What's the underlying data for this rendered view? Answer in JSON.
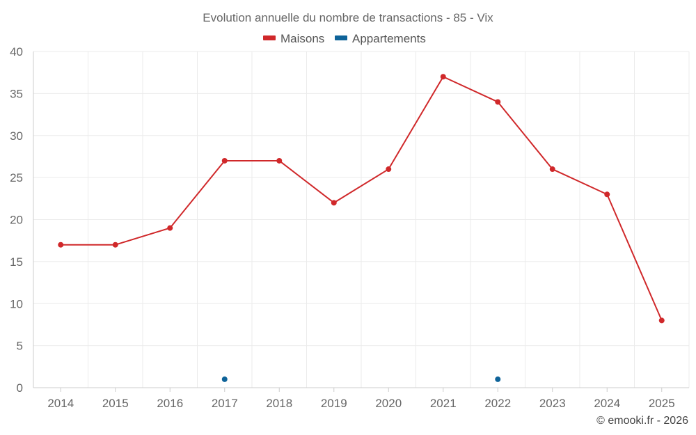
{
  "chart_data": {
    "type": "line",
    "title": "Evolution annuelle du nombre de transactions - 85 - Vix",
    "categories": [
      "2014",
      "2015",
      "2016",
      "2017",
      "2018",
      "2019",
      "2020",
      "2021",
      "2022",
      "2023",
      "2024",
      "2025"
    ],
    "series": [
      {
        "name": "Maisons",
        "color": "#d0282a",
        "values": [
          17,
          17,
          19,
          27,
          27,
          22,
          26,
          37,
          34,
          26,
          23,
          8
        ]
      },
      {
        "name": "Appartements",
        "color": "#0e6399",
        "values": [
          null,
          null,
          null,
          1,
          null,
          null,
          null,
          null,
          1,
          null,
          null,
          null
        ]
      }
    ],
    "ylim": [
      0,
      40
    ],
    "yticks": [
      0,
      5,
      10,
      15,
      20,
      25,
      30,
      35,
      40
    ],
    "grid": true,
    "legend": "top-center",
    "xlabel": "",
    "ylabel": ""
  },
  "credit": "© emooki.fr - 2026"
}
